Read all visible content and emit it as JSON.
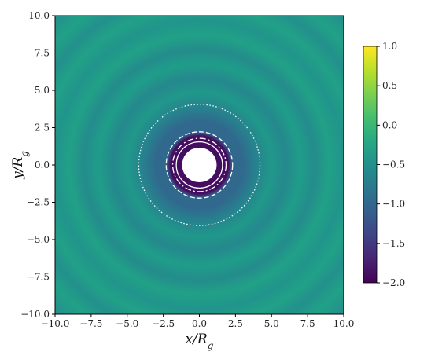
{
  "chart_data": {
    "type": "heatmap",
    "title": "",
    "xlabel": "x/R_g",
    "ylabel": "y/R_g",
    "xlim": [
      -10.0,
      10.0
    ],
    "ylim": [
      -10.0,
      10.0
    ],
    "x_ticks": [
      "−10.0",
      "−7.5",
      "−5.0",
      "−2.5",
      "0.0",
      "2.5",
      "5.0",
      "7.5",
      "10.0"
    ],
    "y_ticks": [
      "−10.0",
      "−7.5",
      "−5.0",
      "−2.5",
      "0.0",
      "2.5",
      "5.0",
      "7.5",
      "10.0"
    ],
    "x_tick_values": [
      -10,
      -7.5,
      -5,
      -2.5,
      0,
      2.5,
      5,
      7.5,
      10
    ],
    "y_tick_values": [
      -10,
      -7.5,
      -5,
      -2.5,
      0,
      2.5,
      5,
      7.5,
      10
    ],
    "colorbar": {
      "range": [
        -2.0,
        1.0
      ],
      "ticks": [
        "1.0",
        "0.5",
        "0.0",
        "−0.5",
        "−1.0",
        "−1.5",
        "−2.0"
      ],
      "tick_values": [
        1.0,
        0.5,
        0.0,
        -0.5,
        -1.0,
        -1.5,
        -2.0
      ],
      "colormap": "viridis"
    },
    "radial_profile": {
      "r": [
        1.2,
        2.0,
        2.3,
        3.0,
        4.0,
        5.0,
        6.0,
        7.0,
        8.0,
        9.0,
        10.0,
        11.0,
        12.0,
        13.0,
        14.2
      ],
      "value": [
        -1.9,
        -1.9,
        -1.0,
        -1.0,
        -0.65,
        -0.4,
        -0.6,
        -0.35,
        -0.55,
        -0.3,
        -0.45,
        -0.3,
        -0.5,
        -0.3,
        -0.5
      ]
    },
    "hole_radius": 1.2,
    "overlay_circles": [
      {
        "radius": 1.6,
        "style": "solid"
      },
      {
        "radius": 1.85,
        "style": "dashdot"
      },
      {
        "radius": 2.3,
        "style": "dashed"
      },
      {
        "radius": 4.2,
        "style": "dotted"
      }
    ],
    "grid": false
  }
}
